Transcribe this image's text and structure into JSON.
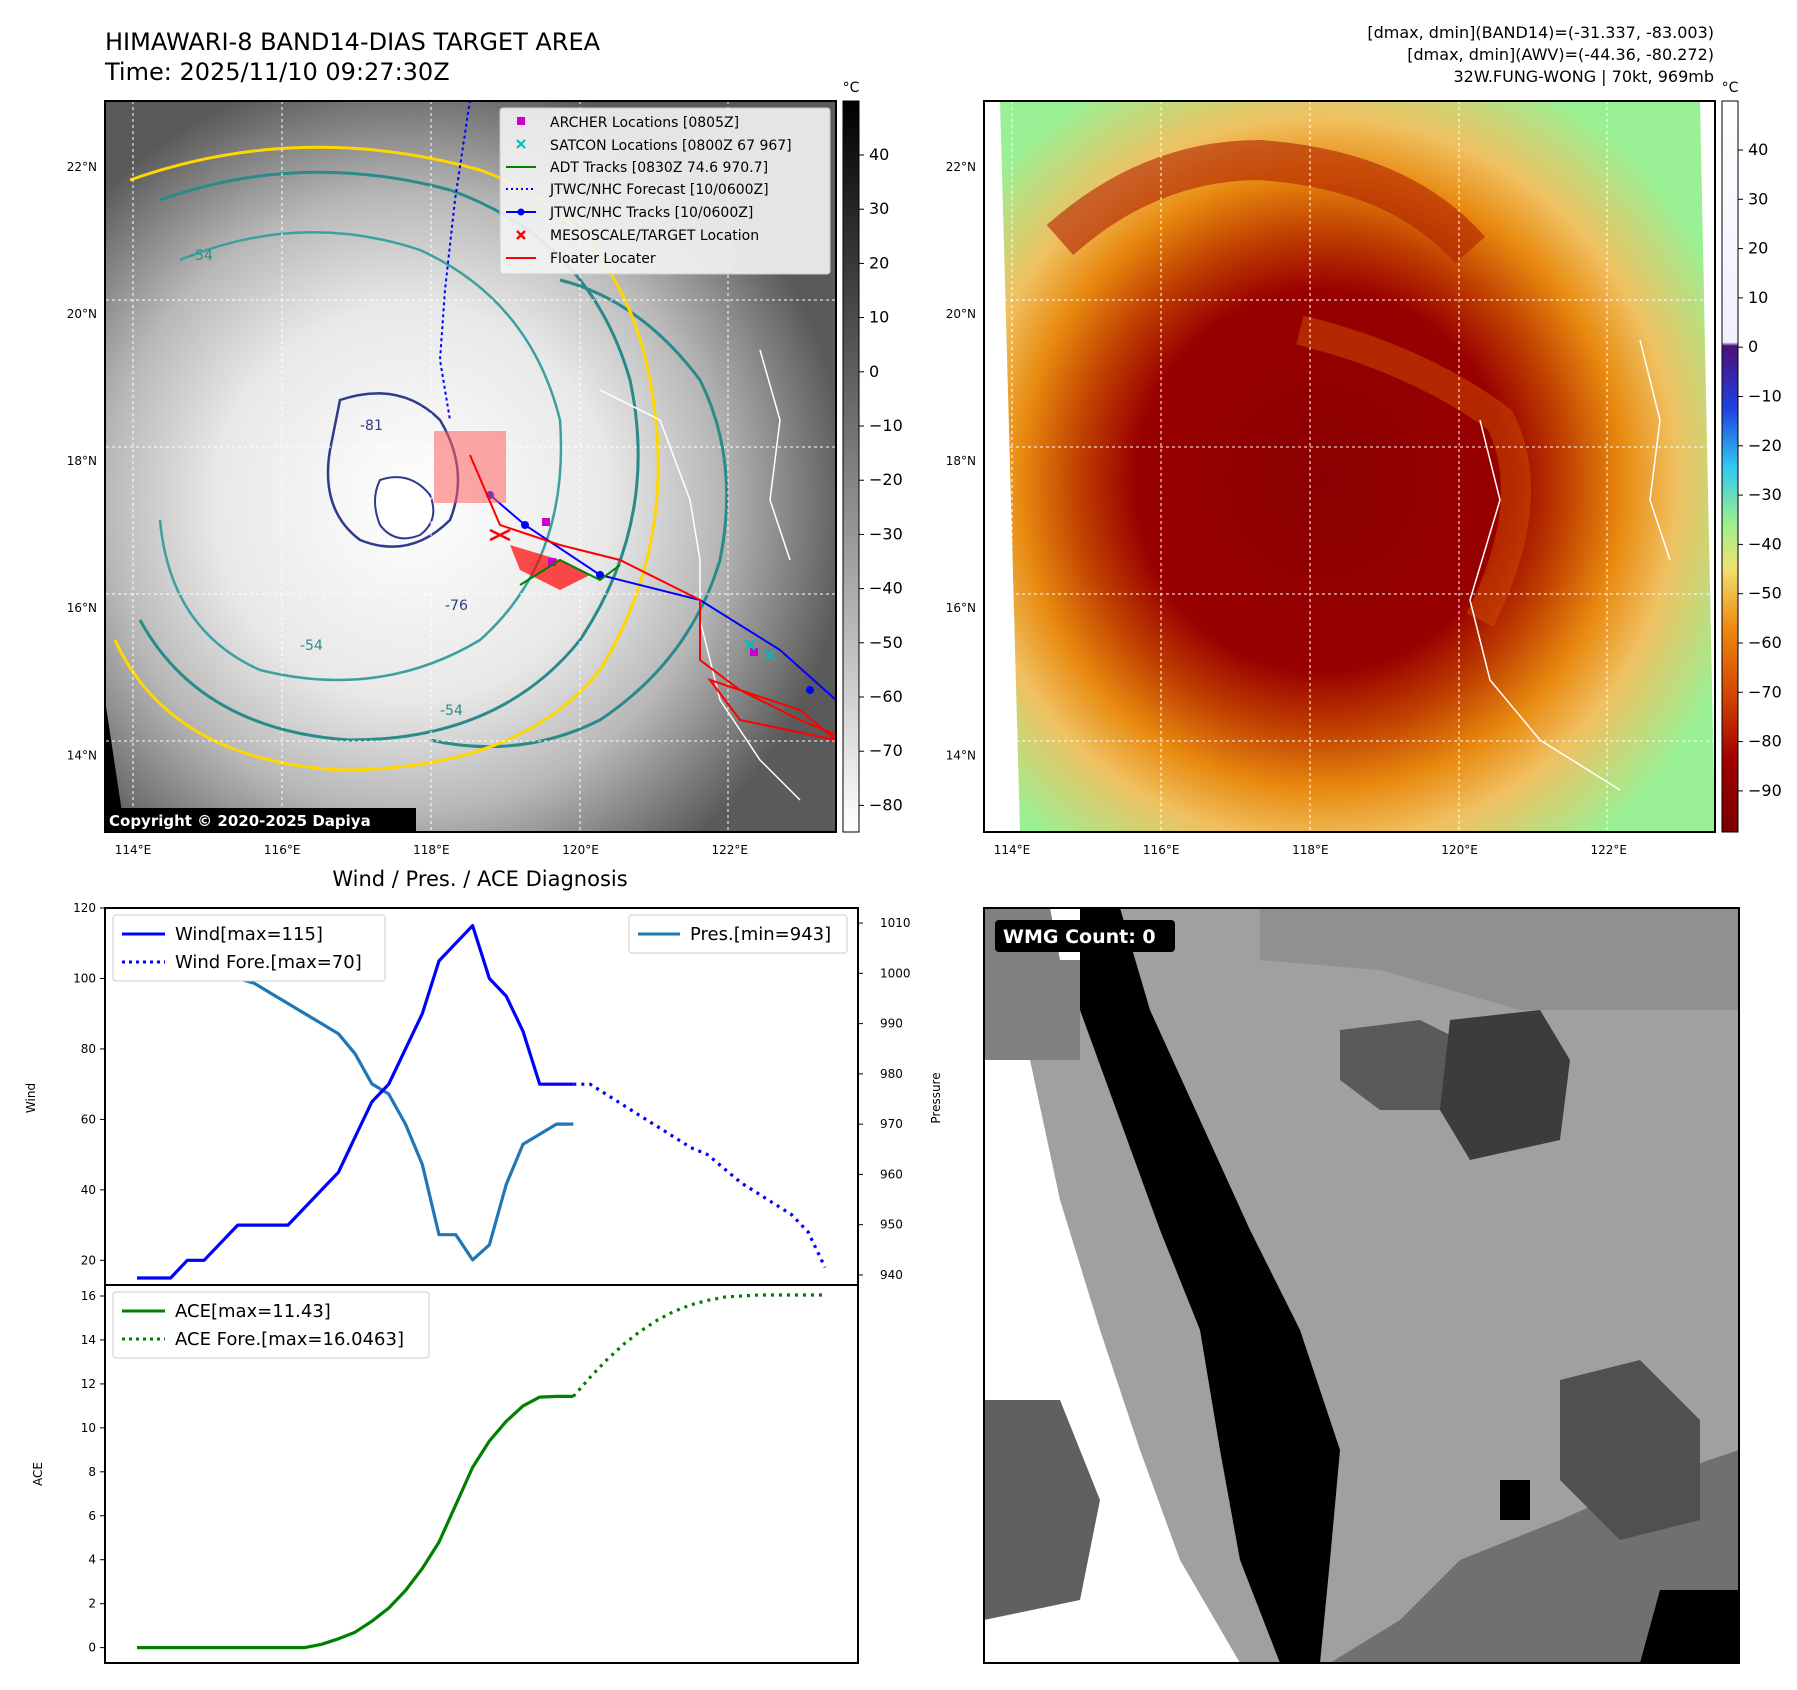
{
  "header": {
    "title": "HIMAWARI-8 BAND14-DIAS TARGET AREA",
    "time": "Time: 2025/11/10 09:27:30Z",
    "stat1": "[dmax, dmin](BAND14)=(-31.337, -83.003)",
    "stat2": "[dmax, dmin](AWV)=(-44.36, -80.272)",
    "stat3": "32W.FUNG-WONG | 70kt, 969mb"
  },
  "map_panels": {
    "lon_ticks": [
      "114°E",
      "116°E",
      "118°E",
      "120°E",
      "122°E"
    ],
    "lat_ticks": [
      "22°N",
      "20°N",
      "18°N",
      "16°N",
      "14°N"
    ],
    "copyright": "Copyright © 2020-2025 Dapiya",
    "contour_labels": [
      "-54",
      "-54",
      "-76",
      "-81",
      "-54"
    ],
    "legend": [
      {
        "label": "ARCHER Locations [0805Z]",
        "color": "#cc00cc",
        "marker": "square"
      },
      {
        "label": "SATCON Locations [0800Z 67 967]",
        "color": "#00bbbb",
        "marker": "x"
      },
      {
        "label": "ADT Tracks [0830Z 74.6 970.7]",
        "color": "#008000",
        "marker": "line"
      },
      {
        "label": "JTWC/NHC Forecast [10/0600Z]",
        "color": "#0000ff",
        "marker": "dotted"
      },
      {
        "label": "JTWC/NHC Tracks [10/0600Z]",
        "color": "#0000ff",
        "marker": "line-dot"
      },
      {
        "label": "MESOSCALE/TARGET Location",
        "color": "#ff0000",
        "marker": "x"
      },
      {
        "label": "Floater Locater",
        "color": "#ff0000",
        "marker": "line"
      }
    ],
    "colorbar_gray": {
      "unit": "°C",
      "ticks": [
        "40",
        "30",
        "20",
        "10",
        "0",
        "−10",
        "−20",
        "−30",
        "−40",
        "−50",
        "−60",
        "−70",
        "−80"
      ]
    },
    "colorbar_color": {
      "unit": "°C",
      "ticks": [
        "40",
        "30",
        "20",
        "10",
        "0",
        "−10",
        "−20",
        "−30",
        "−40",
        "−50",
        "−60",
        "−70",
        "−80",
        "−90"
      ]
    }
  },
  "wmg_panel": {
    "label": "WMG Count: 0"
  },
  "chart_data": {
    "type": "line",
    "title": "Wind / Pres. / ACE Diagnosis",
    "panels": [
      {
        "ylabel": "Wind",
        "ylim": [
          13,
          120
        ],
        "yticks": [
          "120",
          "100",
          "80",
          "60",
          "40",
          "20"
        ],
        "x_range": [
          0,
          41
        ],
        "series": [
          {
            "name": "Wind[max=115]",
            "color": "#0000ff",
            "style": "solid",
            "x": [
              0,
              1,
              2,
              3,
              4,
              5,
              6,
              7,
              8,
              9,
              10,
              11,
              12,
              13,
              14,
              15,
              16,
              17,
              18,
              19,
              20,
              21,
              22,
              23,
              24,
              25,
              26
            ],
            "values": [
              15,
              15,
              15,
              20,
              20,
              25,
              30,
              30,
              30,
              30,
              35,
              40,
              45,
              55,
              65,
              70,
              80,
              90,
              105,
              110,
              115,
              100,
              95,
              85,
              70,
              70,
              70
            ]
          },
          {
            "name": "Wind Fore.[max=70]",
            "color": "#0000ff",
            "style": "dotted",
            "x": [
              26,
              27,
              28,
              29,
              30,
              31,
              32,
              33,
              34,
              35,
              36,
              37,
              38,
              39,
              40,
              41
            ],
            "values": [
              70,
              70,
              67,
              64,
              61,
              58,
              55,
              52,
              50,
              46,
              42,
              39,
              36,
              33,
              28,
              18
            ]
          }
        ],
        "secondary": {
          "ylabel": "Pressure",
          "ylim": [
            938,
            1013
          ],
          "yticks": [
            "1010",
            "1000",
            "990",
            "980",
            "970",
            "960",
            "950",
            "940"
          ],
          "series": [
            {
              "name": "Pres.[min=943]",
              "color": "#1f77b4",
              "style": "solid",
              "x": [
                0,
                1,
                2,
                3,
                4,
                5,
                6,
                7,
                8,
                9,
                10,
                11,
                12,
                13,
                14,
                15,
                16,
                17,
                18,
                19,
                20,
                21,
                22,
                23,
                24,
                25,
                26
              ],
              "values": [
                1008,
                1005,
                1004,
                1003,
                1002,
                1000,
                999,
                998,
                996,
                994,
                992,
                990,
                988,
                984,
                978,
                976,
                970,
                962,
                948,
                948,
                943,
                946,
                958,
                966,
                968,
                970,
                970
              ]
            }
          ]
        }
      },
      {
        "ylabel": "ACE",
        "ylim": [
          -0.7,
          16.5
        ],
        "yticks": [
          "16",
          "14",
          "12",
          "10",
          "8",
          "6",
          "4",
          "2",
          "0"
        ],
        "x_range": [
          0,
          41
        ],
        "series": [
          {
            "name": "ACE[max=11.43]",
            "color": "#008000",
            "style": "solid",
            "x": [
              0,
              2,
              4,
              6,
              8,
              10,
              11,
              12,
              13,
              14,
              15,
              16,
              17,
              18,
              19,
              20,
              21,
              22,
              23,
              24,
              25,
              26
            ],
            "values": [
              0,
              0,
              0,
              0,
              0,
              0,
              0.15,
              0.4,
              0.7,
              1.2,
              1.8,
              2.6,
              3.6,
              4.8,
              6.5,
              8.2,
              9.4,
              10.3,
              11.0,
              11.4,
              11.43,
              11.43
            ]
          },
          {
            "name": "ACE Fore.[max=16.0463]",
            "color": "#008000",
            "style": "dotted",
            "x": [
              26,
              27,
              28,
              29,
              30,
              31,
              32,
              33,
              34,
              35,
              36,
              37,
              38,
              39,
              40,
              41
            ],
            "values": [
              11.43,
              12.3,
              13.1,
              13.8,
              14.4,
              14.9,
              15.3,
              15.6,
              15.8,
              15.95,
              16.0,
              16.0463,
              16.0463,
              16.0463,
              16.0463,
              16.0463
            ]
          }
        ]
      }
    ]
  }
}
